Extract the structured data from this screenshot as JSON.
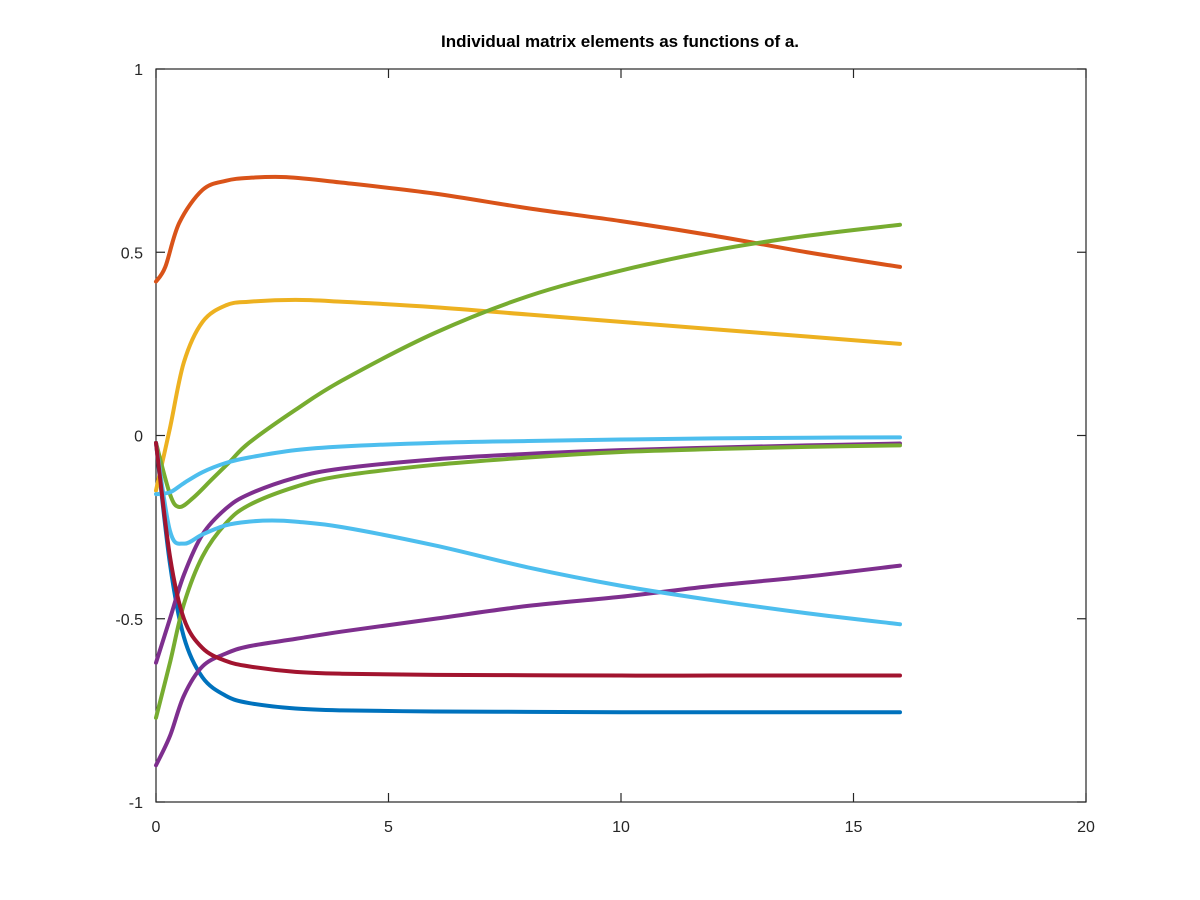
{
  "chart_data": {
    "type": "line",
    "title": "Individual matrix elements as functions of a.",
    "xlabel": "",
    "ylabel": "",
    "xlim": [
      0,
      20
    ],
    "ylim": [
      -1,
      1
    ],
    "xticks": [
      0,
      5,
      10,
      15,
      20
    ],
    "xtick_labels": [
      "0",
      "5",
      "10",
      "15",
      "20"
    ],
    "yticks": [
      -1,
      -0.5,
      0,
      0.5,
      1
    ],
    "ytick_labels": [
      "-1",
      "-0.5",
      "0",
      "0.5",
      "1"
    ],
    "grid": false,
    "box": true,
    "series": [
      {
        "color": "#0072BD",
        "x": [
          0,
          0.3,
          0.6,
          1,
          1.5,
          2,
          3,
          4,
          6,
          8,
          10,
          12,
          14,
          16
        ],
        "y": [
          -0.02,
          -0.35,
          -0.55,
          -0.66,
          -0.71,
          -0.73,
          -0.745,
          -0.75,
          -0.753,
          -0.754,
          -0.755,
          -0.755,
          -0.755,
          -0.755
        ]
      },
      {
        "color": "#D95319",
        "x": [
          0,
          0.2,
          0.5,
          1,
          1.5,
          2,
          2.8,
          4,
          6,
          8,
          10,
          12,
          14,
          16
        ],
        "y": [
          0.42,
          0.46,
          0.58,
          0.67,
          0.695,
          0.703,
          0.705,
          0.69,
          0.66,
          0.62,
          0.585,
          0.545,
          0.5,
          0.46
        ]
      },
      {
        "color": "#EDB120",
        "x": [
          0,
          0.3,
          0.6,
          1,
          1.5,
          2,
          3,
          4,
          6,
          8,
          10,
          12,
          14,
          16
        ],
        "y": [
          -0.15,
          0.02,
          0.2,
          0.31,
          0.355,
          0.365,
          0.37,
          0.365,
          0.35,
          0.33,
          0.31,
          0.29,
          0.27,
          0.25
        ]
      },
      {
        "color": "#7E2F8E",
        "x": [
          0,
          0.3,
          0.6,
          1,
          1.5,
          2,
          3,
          4,
          6,
          8,
          10,
          12,
          14,
          16
        ],
        "y": [
          -0.62,
          -0.5,
          -0.38,
          -0.27,
          -0.2,
          -0.16,
          -0.115,
          -0.09,
          -0.065,
          -0.05,
          -0.04,
          -0.033,
          -0.027,
          -0.022
        ]
      },
      {
        "color": "#7E2F8E",
        "x": [
          0,
          0.3,
          0.6,
          1,
          1.5,
          2,
          3,
          4,
          6,
          8,
          10,
          12,
          14,
          16
        ],
        "y": [
          -0.9,
          -0.82,
          -0.71,
          -0.63,
          -0.595,
          -0.575,
          -0.555,
          -0.535,
          -0.5,
          -0.465,
          -0.44,
          -0.41,
          -0.385,
          -0.355
        ]
      },
      {
        "color": "#77AC30",
        "x": [
          0,
          0.3,
          0.5,
          0.8,
          1.2,
          1.6,
          2,
          3,
          4,
          6,
          8,
          10,
          12,
          14,
          16
        ],
        "y": [
          -0.02,
          -0.16,
          -0.195,
          -0.17,
          -0.12,
          -0.07,
          -0.02,
          0.07,
          0.15,
          0.28,
          0.38,
          0.45,
          0.505,
          0.545,
          0.575
        ]
      },
      {
        "color": "#77AC30",
        "x": [
          0,
          0.3,
          0.6,
          1,
          1.5,
          2,
          3,
          4,
          6,
          8,
          10,
          12,
          14,
          16
        ],
        "y": [
          -0.77,
          -0.62,
          -0.46,
          -0.33,
          -0.24,
          -0.19,
          -0.14,
          -0.11,
          -0.08,
          -0.06,
          -0.045,
          -0.037,
          -0.031,
          -0.027
        ]
      },
      {
        "color": "#4DBEEE",
        "x": [
          0,
          0.3,
          0.6,
          1,
          1.5,
          2,
          3,
          4,
          6,
          8,
          10,
          12,
          14,
          16
        ],
        "y": [
          -0.16,
          -0.155,
          -0.13,
          -0.1,
          -0.075,
          -0.06,
          -0.04,
          -0.03,
          -0.02,
          -0.015,
          -0.011,
          -0.008,
          -0.006,
          -0.005
        ]
      },
      {
        "color": "#4DBEEE",
        "x": [
          0,
          0.3,
          0.6,
          1,
          1.5,
          2,
          2.5,
          3,
          4,
          6,
          8,
          10,
          12,
          14,
          16
        ],
        "y": [
          -0.02,
          -0.26,
          -0.295,
          -0.27,
          -0.245,
          -0.235,
          -0.232,
          -0.235,
          -0.25,
          -0.3,
          -0.36,
          -0.41,
          -0.45,
          -0.485,
          -0.515
        ]
      },
      {
        "color": "#A2142F",
        "x": [
          0,
          0.3,
          0.6,
          1,
          1.5,
          2,
          3,
          4,
          6,
          8,
          10,
          12,
          14,
          16
        ],
        "y": [
          -0.02,
          -0.33,
          -0.5,
          -0.58,
          -0.615,
          -0.63,
          -0.645,
          -0.65,
          -0.653,
          -0.654,
          -0.655,
          -0.655,
          -0.655,
          -0.655
        ]
      }
    ]
  }
}
